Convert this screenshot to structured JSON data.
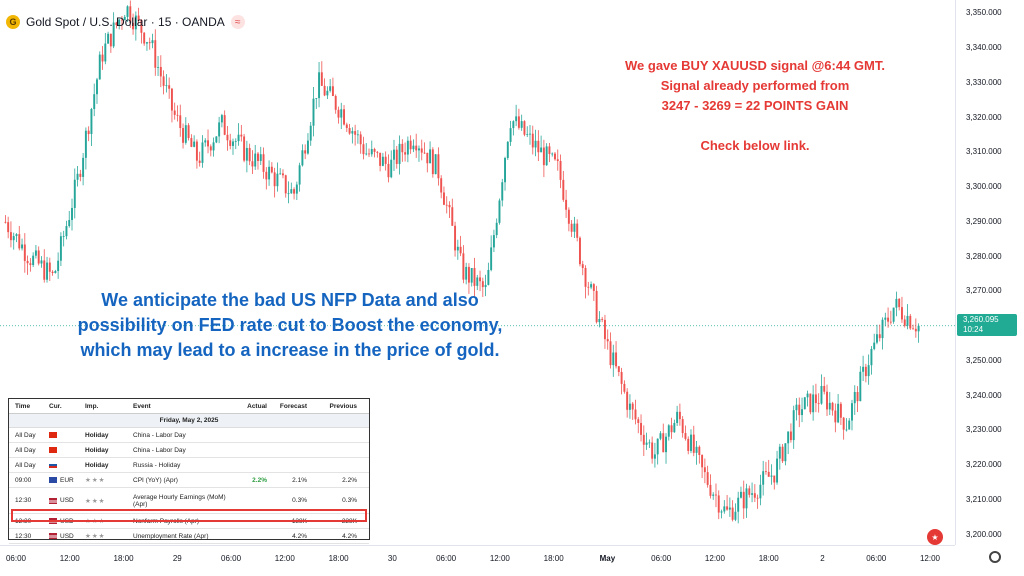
{
  "header": {
    "symbol_icon": "gold-coin-icon",
    "title": "Gold Spot / U.S. Dollar · 15 · OANDA",
    "indicator_icon": "wave-icon"
  },
  "price_axis": {
    "labels": [
      "3,350.000",
      "3,340.000",
      "3,330.000",
      "3,320.000",
      "3,310.000",
      "3,300.000",
      "3,290.000",
      "3,280.000",
      "3,270.000",
      "3,250.000",
      "3,240.000",
      "3,230.000",
      "3,220.000",
      "3,210.000",
      "3,200.000"
    ],
    "current_price": "3,260.095",
    "countdown": "10:24"
  },
  "time_axis": {
    "labels": [
      {
        "text": "06:00",
        "bold": false
      },
      {
        "text": "12:00",
        "bold": false
      },
      {
        "text": "18:00",
        "bold": false
      },
      {
        "text": "29",
        "bold": false
      },
      {
        "text": "06:00",
        "bold": false
      },
      {
        "text": "12:00",
        "bold": false
      },
      {
        "text": "18:00",
        "bold": false
      },
      {
        "text": "30",
        "bold": false
      },
      {
        "text": "06:00",
        "bold": false
      },
      {
        "text": "12:00",
        "bold": false
      },
      {
        "text": "18:00",
        "bold": false
      },
      {
        "text": "May",
        "bold": true
      },
      {
        "text": "06:00",
        "bold": false
      },
      {
        "text": "12:00",
        "bold": false
      },
      {
        "text": "18:00",
        "bold": false
      },
      {
        "text": "2",
        "bold": false
      },
      {
        "text": "06:00",
        "bold": false
      },
      {
        "text": "12:00",
        "bold": false
      }
    ]
  },
  "annotations": {
    "signal": "We gave BUY XAUUSD signal @6:44 GMT.\nSignal already performed from\n3247 - 3269 = 22 POINTS GAIN\n\nCheck below link.",
    "anticipate": "We anticipate the bad US NFP Data and also possibility on FED rate cut to Boost the economy, which may lead to a increase in the price of gold."
  },
  "calendar": {
    "columns": [
      "Time",
      "Cur.",
      "Imp.",
      "Event",
      "Actual",
      "Forecast",
      "Previous"
    ],
    "date": "Friday, May 2, 2025",
    "rows": [
      {
        "time": "All Day",
        "cur": "",
        "imp": "Holiday",
        "event": "China - Labor Day",
        "actual": "",
        "forecast": "",
        "previous": ""
      },
      {
        "time": "All Day",
        "cur": "",
        "imp": "Holiday",
        "event": "China - Labor Day",
        "actual": "",
        "forecast": "",
        "previous": ""
      },
      {
        "time": "All Day",
        "cur": "",
        "imp": "Holiday",
        "event": "Russia - Holiday",
        "actual": "",
        "forecast": "",
        "previous": ""
      },
      {
        "time": "09:00",
        "cur": "EUR",
        "imp": "★★★",
        "event": "CPI (YoY) (Apr)",
        "actual": "2.2%",
        "forecast": "2.1%",
        "previous": "2.2%"
      },
      {
        "time": "12:30",
        "cur": "USD",
        "imp": "★★★",
        "event": "Average Hourly Earnings (MoM) (Apr)",
        "actual": "",
        "forecast": "0.3%",
        "previous": "0.3%"
      },
      {
        "time": "12:30",
        "cur": "USD",
        "imp": "★★★",
        "event": "Nonfarm Payrolls (Apr)",
        "actual": "",
        "forecast": "138K",
        "previous": "228K"
      },
      {
        "time": "12:30",
        "cur": "USD",
        "imp": "★★★",
        "event": "Unemployment Rate (Apr)",
        "actual": "",
        "forecast": "4.2%",
        "previous": "4.2%"
      }
    ]
  },
  "chart_data": {
    "type": "candlestick",
    "up_color": "#26a69a",
    "down_color": "#ef5350",
    "ylim": [
      3197,
      3353
    ],
    "keypoints": [
      3290,
      3280,
      3274,
      3302,
      3338,
      3352,
      3342,
      3321,
      3308,
      3318,
      3310,
      3304,
      3298,
      3330,
      3322,
      3310,
      3306,
      3315,
      3305,
      3276,
      3270,
      3320,
      3312,
      3305,
      3278,
      3255,
      3236,
      3223,
      3234,
      3218,
      3206,
      3212,
      3218,
      3236,
      3240,
      3232,
      3252,
      3266,
      3260
    ],
    "current_line": 3260.095
  },
  "colors": {
    "signal_text": "#e53935",
    "anticipate_text": "#1565c0",
    "price_badge": "#22ab94"
  }
}
